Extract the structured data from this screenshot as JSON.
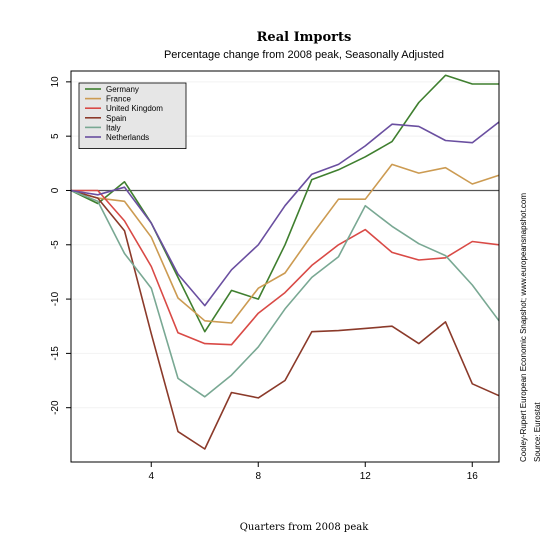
{
  "chart_data": {
    "type": "line",
    "title": "Real Imports",
    "subtitle": "Percentage change from 2008 peak, Seasonally Adjusted",
    "xlabel": "Quarters from 2008 peak",
    "ylabel": "",
    "xlim": [
      1,
      17
    ],
    "ylim": [
      -25,
      11
    ],
    "xticks": [
      4,
      8,
      12,
      16
    ],
    "yticks": [
      10,
      5,
      0,
      -5,
      -10,
      -15,
      -20
    ],
    "zero_line": true,
    "grid": true,
    "legend_position": "top-left",
    "x": [
      1,
      2,
      3,
      4,
      5,
      6,
      7,
      8,
      9,
      10,
      11,
      12,
      13,
      14,
      15,
      16,
      17
    ],
    "series": [
      {
        "name": "Germany",
        "color": "#3f7f2f",
        "values": [
          0,
          -1.2,
          0.8,
          -3,
          -8,
          -13,
          -9.2,
          -10,
          -5,
          1,
          1.9,
          3.1,
          4.5,
          8.1,
          10.6,
          9.8,
          9.8
        ]
      },
      {
        "name": "France",
        "color": "#cc9b52",
        "values": [
          0,
          -0.7,
          -1,
          -4.3,
          -9.9,
          -12,
          -12.2,
          -9,
          -7.6,
          -4.1,
          -0.8,
          -0.8,
          2.4,
          1.6,
          2.1,
          0.6,
          1.4
        ]
      },
      {
        "name": "United Kingdom",
        "color": "#d94a46",
        "values": [
          0,
          0,
          -2.8,
          -7,
          -13.1,
          -14.1,
          -14.2,
          -11.3,
          -9.4,
          -6.9,
          -5,
          -3.6,
          -5.7,
          -6.4,
          -6.2,
          -4.7,
          -5
        ]
      },
      {
        "name": "Spain",
        "color": "#8b3a2a",
        "values": [
          0,
          -0.7,
          -3.7,
          -13.2,
          -22.2,
          -23.8,
          -18.6,
          -19.1,
          -17.5,
          -13,
          -12.9,
          -12.7,
          -12.5,
          -14.1,
          -12.1,
          -17.8,
          -18.9
        ]
      },
      {
        "name": "Italy",
        "color": "#79a893",
        "values": [
          0,
          -1,
          -5.8,
          -9,
          -17.3,
          -19,
          -17,
          -14.4,
          -10.9,
          -8,
          -6.1,
          -1.4,
          -3.3,
          -4.9,
          -6,
          -8.7,
          -12
        ]
      },
      {
        "name": "Netherlands",
        "color": "#6a4fa0",
        "values": [
          0,
          -0.4,
          0.3,
          -3,
          -7.7,
          -10.6,
          -7.3,
          -5,
          -1.4,
          1.5,
          2.4,
          4.1,
          6.1,
          5.9,
          4.6,
          4.4,
          6.3
        ]
      }
    ],
    "source_note": "Cooley-Rupert European Economic Snapshot; www.europeansnapshot.com",
    "source": "Source: Eurostat"
  }
}
